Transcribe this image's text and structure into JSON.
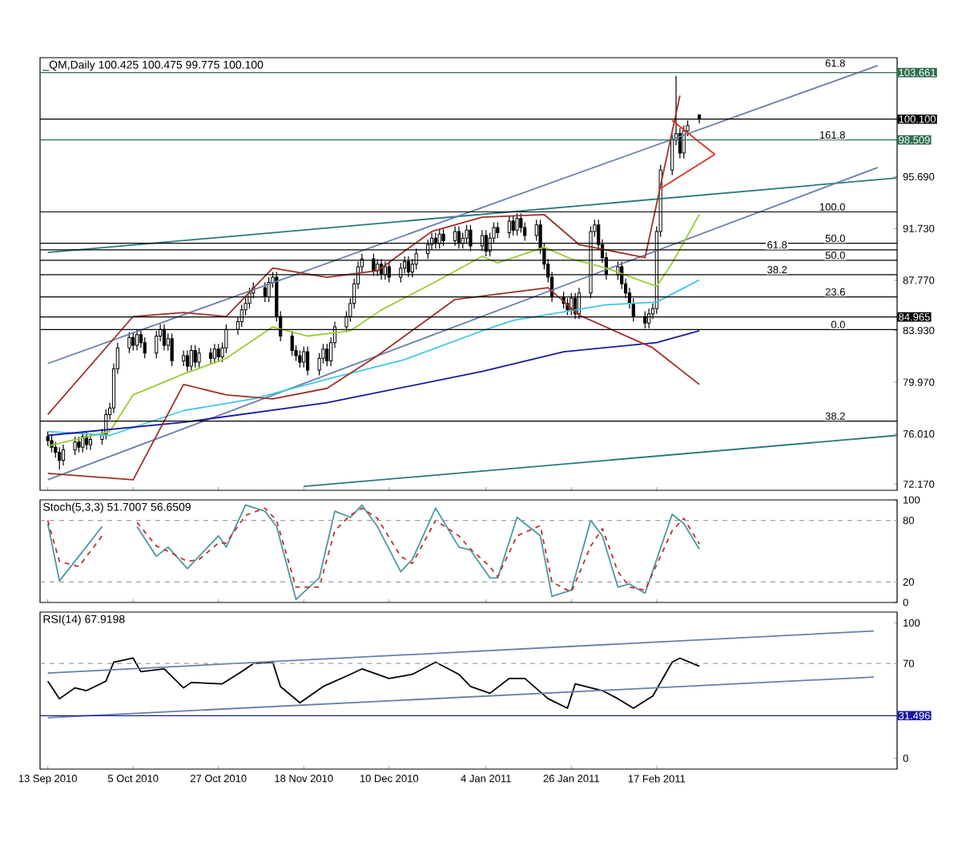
{
  "chart_data": [
    {
      "type": "candlestick",
      "title": "_QM,Daily  100.425 100.475 99.775 100.100",
      "tick_labels": "y",
      "xlim": [
        "2010-09-11",
        "2011-04-20"
      ],
      "ylim": [
        71.7,
        104.8
      ],
      "xticks": [
        {
          "value": "2010-09-13",
          "label": null
        },
        {
          "value": "2010-10-05",
          "label": null
        },
        {
          "value": "2010-10-27",
          "label": null
        },
        {
          "value": "2010-11-18",
          "label": null
        },
        {
          "value": "2010-12-10",
          "label": null
        },
        {
          "value": "2011-01-04",
          "label": null
        },
        {
          "value": "2011-01-26",
          "label": null
        },
        {
          "value": "2011-02-17",
          "label": null
        }
      ],
      "yticks": [
        {
          "value": 95.69,
          "label": "95.690"
        },
        {
          "value": 91.73,
          "label": "91.730"
        },
        {
          "value": 87.77,
          "label": "87.770"
        },
        {
          "value": 83.93,
          "label": "83.930"
        },
        {
          "value": 79.97,
          "label": "79.970"
        },
        {
          "value": 76.01,
          "label": "76.010"
        },
        {
          "value": 72.17,
          "label": "72.170"
        }
      ],
      "x": [
        "2010-09-13",
        "2010-09-14",
        "2010-09-15",
        "2010-09-16",
        "2010-09-17",
        "2010-09-20",
        "2010-09-21",
        "2010-09-22",
        "2010-09-23",
        "2010-09-24",
        "2010-09-27",
        "2010-09-28",
        "2010-09-29",
        "2010-09-30",
        "2010-10-01",
        "2010-10-04",
        "2010-10-05",
        "2010-10-06",
        "2010-10-07",
        "2010-10-08",
        "2010-10-11",
        "2010-10-12",
        "2010-10-13",
        "2010-10-14",
        "2010-10-15",
        "2010-10-18",
        "2010-10-19",
        "2010-10-20",
        "2010-10-21",
        "2010-10-22",
        "2010-10-25",
        "2010-10-26",
        "2010-10-27",
        "2010-10-28",
        "2010-10-29",
        "2010-11-01",
        "2010-11-02",
        "2010-11-03",
        "2010-11-04",
        "2010-11-05",
        "2010-11-08",
        "2010-11-09",
        "2010-11-10",
        "2010-11-11",
        "2010-11-12",
        "2010-11-15",
        "2010-11-16",
        "2010-11-17",
        "2010-11-18",
        "2010-11-19",
        "2010-11-22",
        "2010-11-23",
        "2010-11-24",
        "2010-11-25",
        "2010-11-26",
        "2010-11-29",
        "2010-11-30",
        "2010-12-01",
        "2010-12-02",
        "2010-12-03",
        "2010-12-06",
        "2010-12-07",
        "2010-12-08",
        "2010-12-09",
        "2010-12-10",
        "2010-12-13",
        "2010-12-14",
        "2010-12-15",
        "2010-12-16",
        "2010-12-17",
        "2010-12-20",
        "2010-12-21",
        "2010-12-22",
        "2010-12-23",
        "2010-12-24",
        "2010-12-27",
        "2010-12-28",
        "2010-12-29",
        "2010-12-30",
        "2010-12-31",
        "2011-01-03",
        "2011-01-04",
        "2011-01-05",
        "2011-01-06",
        "2011-01-07",
        "2011-01-10",
        "2011-01-11",
        "2011-01-12",
        "2011-01-13",
        "2011-01-14",
        "2011-01-17",
        "2011-01-18",
        "2011-01-19",
        "2011-01-20",
        "2011-01-21",
        "2011-01-24",
        "2011-01-25",
        "2011-01-26",
        "2011-01-27",
        "2011-01-28",
        "2011-01-31",
        "2011-02-01",
        "2011-02-02",
        "2011-02-03",
        "2011-02-04",
        "2011-02-07",
        "2011-02-08",
        "2011-02-09",
        "2011-02-10",
        "2011-02-11",
        "2011-02-14",
        "2011-02-15",
        "2011-02-16",
        "2011-02-17",
        "2011-02-18",
        "2011-02-21",
        "2011-02-22",
        "2011-02-23",
        "2011-02-24",
        "2011-02-25",
        "2011-02-28"
      ],
      "ohlc": [
        [
          75.8,
          76.2,
          75.1,
          75.5
        ],
        [
          75.5,
          75.9,
          74.6,
          75.0
        ],
        [
          75.0,
          75.4,
          74.2,
          74.6
        ],
        [
          74.6,
          75.0,
          73.3,
          74.0
        ],
        [
          74.0,
          75.2,
          73.6,
          74.8
        ],
        [
          74.8,
          75.8,
          74.4,
          75.4
        ],
        [
          75.4,
          75.8,
          74.6,
          75.0
        ],
        [
          75.0,
          76.2,
          74.6,
          75.8
        ],
        [
          75.8,
          76.2,
          74.8,
          75.2
        ],
        [
          75.2,
          76.0,
          74.8,
          75.6
        ],
        [
          75.6,
          76.4,
          75.2,
          76.0
        ],
        [
          76.0,
          77.9,
          75.6,
          77.5
        ],
        [
          77.5,
          78.4,
          77.1,
          78.0
        ],
        [
          78.0,
          81.4,
          77.6,
          81.0
        ],
        [
          81.0,
          83.0,
          80.6,
          82.6
        ],
        [
          82.6,
          83.8,
          82.2,
          83.4
        ],
        [
          83.4,
          83.8,
          82.4,
          82.8
        ],
        [
          82.8,
          84.0,
          82.4,
          83.6
        ],
        [
          83.6,
          84.0,
          82.6,
          83.0
        ],
        [
          83.0,
          83.4,
          81.8,
          82.2
        ],
        [
          82.2,
          83.9,
          81.8,
          83.5
        ],
        [
          83.5,
          84.4,
          83.1,
          84.0
        ],
        [
          84.0,
          84.4,
          82.4,
          82.8
        ],
        [
          82.8,
          83.7,
          82.4,
          83.3
        ],
        [
          83.3,
          83.7,
          81.2,
          81.6
        ],
        [
          81.6,
          82.4,
          81.2,
          82.0
        ],
        [
          82.0,
          82.4,
          80.8,
          81.2
        ],
        [
          81.2,
          82.8,
          80.8,
          82.4
        ],
        [
          82.4,
          82.8,
          81.1,
          81.5
        ],
        [
          81.5,
          82.6,
          81.1,
          82.2
        ],
        [
          82.2,
          82.6,
          81.4,
          81.8
        ],
        [
          81.8,
          82.9,
          81.4,
          82.5
        ],
        [
          82.5,
          82.9,
          81.5,
          81.9
        ],
        [
          81.9,
          83.0,
          81.5,
          82.6
        ],
        [
          82.6,
          84.4,
          82.2,
          84.0
        ],
        [
          84.0,
          85.0,
          83.6,
          84.6
        ],
        [
          84.6,
          85.9,
          84.2,
          85.5
        ],
        [
          85.5,
          86.4,
          85.1,
          86.0
        ],
        [
          86.0,
          87.2,
          85.6,
          86.8
        ],
        [
          86.8,
          87.6,
          86.4,
          87.2
        ],
        [
          87.2,
          87.6,
          86.1,
          86.5
        ],
        [
          86.5,
          88.0,
          86.1,
          87.6
        ],
        [
          87.6,
          88.4,
          87.2,
          88.0
        ],
        [
          88.0,
          88.4,
          84.6,
          85.0
        ],
        [
          85.0,
          85.4,
          83.1,
          83.5
        ],
        [
          83.5,
          83.9,
          82.0,
          82.4
        ],
        [
          82.4,
          82.8,
          81.6,
          82.0
        ],
        [
          82.0,
          82.4,
          81.1,
          81.5
        ],
        [
          81.5,
          82.7,
          81.1,
          82.3
        ],
        [
          82.3,
          82.7,
          80.5,
          80.9
        ],
        [
          80.9,
          82.2,
          80.5,
          81.8
        ],
        [
          81.8,
          82.9,
          81.4,
          82.5
        ],
        [
          82.5,
          82.9,
          81.2,
          81.6
        ],
        [
          81.6,
          83.4,
          81.2,
          83.0
        ],
        [
          83.0,
          84.6,
          82.6,
          84.2
        ],
        [
          84.2,
          85.4,
          83.8,
          85.0
        ],
        [
          85.0,
          86.4,
          84.6,
          86.0
        ],
        [
          86.0,
          87.9,
          85.6,
          87.5
        ],
        [
          87.5,
          89.2,
          87.1,
          88.8
        ],
        [
          88.8,
          89.8,
          88.4,
          89.4
        ],
        [
          89.4,
          89.8,
          88.1,
          88.5
        ],
        [
          88.5,
          89.4,
          88.1,
          89.0
        ],
        [
          89.0,
          89.4,
          87.8,
          88.2
        ],
        [
          88.2,
          89.2,
          87.8,
          88.8
        ],
        [
          88.8,
          89.2,
          87.6,
          88.0
        ],
        [
          88.0,
          89.1,
          87.6,
          88.7
        ],
        [
          88.7,
          89.6,
          88.3,
          89.2
        ],
        [
          89.2,
          89.6,
          88.0,
          88.4
        ],
        [
          88.4,
          89.4,
          88.0,
          89.0
        ],
        [
          89.0,
          90.2,
          88.6,
          89.8
        ],
        [
          89.8,
          90.9,
          89.4,
          90.5
        ],
        [
          90.5,
          91.4,
          90.1,
          91.0
        ],
        [
          91.0,
          91.4,
          90.2,
          90.6
        ],
        [
          90.6,
          91.7,
          90.2,
          91.3
        ],
        [
          91.3,
          91.7,
          90.4,
          90.8
        ],
        [
          90.8,
          91.9,
          90.4,
          91.5
        ],
        [
          91.5,
          91.9,
          90.2,
          90.6
        ],
        [
          90.6,
          91.4,
          90.2,
          91.0
        ],
        [
          91.0,
          92.0,
          90.6,
          91.6
        ],
        [
          91.6,
          92.0,
          90.0,
          90.4
        ],
        [
          90.4,
          91.6,
          90.0,
          91.2
        ],
        [
          91.2,
          91.6,
          89.6,
          90.0
        ],
        [
          90.0,
          91.4,
          89.6,
          91.0
        ],
        [
          91.0,
          92.2,
          90.6,
          91.8
        ],
        [
          91.8,
          92.2,
          91.0,
          91.4
        ],
        [
          91.4,
          92.7,
          91.0,
          92.3
        ],
        [
          92.3,
          92.7,
          91.2,
          91.6
        ],
        [
          91.6,
          92.9,
          91.2,
          92.5
        ],
        [
          92.5,
          92.9,
          91.4,
          91.8
        ],
        [
          91.8,
          92.2,
          90.8,
          91.2
        ],
        [
          91.2,
          92.4,
          90.8,
          92.0
        ],
        [
          92.0,
          92.4,
          89.8,
          90.2
        ],
        [
          90.2,
          90.6,
          88.6,
          89.0
        ],
        [
          89.0,
          89.4,
          87.6,
          88.0
        ],
        [
          88.0,
          88.4,
          86.1,
          86.5
        ],
        [
          86.5,
          86.9,
          85.6,
          86.0
        ],
        [
          86.0,
          86.4,
          85.1,
          85.5
        ],
        [
          85.5,
          86.8,
          85.1,
          86.4
        ],
        [
          86.4,
          86.8,
          84.8,
          85.2
        ],
        [
          85.2,
          87.2,
          84.8,
          86.8
        ],
        [
          86.8,
          91.9,
          86.4,
          91.5
        ],
        [
          91.5,
          92.4,
          91.1,
          92.0
        ],
        [
          92.0,
          92.4,
          90.1,
          90.5
        ],
        [
          90.5,
          90.9,
          89.1,
          89.5
        ],
        [
          89.5,
          89.9,
          87.8,
          88.2
        ],
        [
          88.2,
          89.2,
          87.8,
          88.8
        ],
        [
          88.8,
          89.2,
          87.1,
          87.5
        ],
        [
          87.5,
          87.9,
          86.4,
          86.8
        ],
        [
          86.8,
          87.2,
          85.6,
          86.0
        ],
        [
          86.0,
          86.4,
          84.6,
          85.0
        ],
        [
          85.0,
          85.4,
          84.1,
          84.5
        ],
        [
          84.5,
          85.6,
          84.1,
          85.2
        ],
        [
          85.2,
          86.0,
          84.8,
          85.6
        ],
        [
          85.6,
          91.9,
          85.2,
          91.5
        ],
        [
          91.5,
          96.6,
          91.1,
          96.2
        ],
        [
          96.2,
          98.9,
          95.8,
          98.5
        ],
        [
          98.5,
          103.4,
          98.1,
          99.0
        ],
        [
          99.0,
          99.4,
          97.1,
          97.5
        ],
        [
          97.5,
          99.6,
          97.1,
          99.2
        ],
        [
          99.2,
          100.0,
          98.8,
          99.6
        ],
        [
          100.425,
          100.475,
          99.775,
          100.1
        ]
      ],
      "series": [
        {
          "type": "line",
          "color": "#2a7a80",
          "x": [
            "2010-09-13",
            "2011-04-20"
          ],
          "values": [
            89.9,
            95.6
          ]
        },
        {
          "type": "line",
          "color": "#2a7a80",
          "x": [
            "2010-11-18",
            "2011-04-20"
          ],
          "values": [
            72.0,
            75.9
          ]
        },
        {
          "type": "line",
          "color": "#6a7fa8",
          "x": [
            "2010-09-13",
            "2011-04-15"
          ],
          "values": [
            81.4,
            104.2
          ]
        },
        {
          "type": "line",
          "color": "#6a7fa8",
          "x": [
            "2010-09-13",
            "2011-04-15"
          ],
          "values": [
            72.5,
            96.4
          ]
        },
        {
          "type": "line",
          "color": "#9acd32",
          "x": [
            "2010-09-13",
            "2010-09-29",
            "2010-10-05",
            "2010-10-18",
            "2010-10-29",
            "2010-11-10",
            "2010-11-19",
            "2010-11-30",
            "2010-12-08",
            "2010-12-21",
            "2011-01-03",
            "2011-01-07",
            "2011-01-19",
            "2011-01-26",
            "2011-02-04",
            "2011-02-17",
            "2011-02-21",
            "2011-02-28"
          ],
          "values": [
            75.1,
            76.2,
            79.0,
            80.6,
            81.8,
            84.2,
            83.5,
            83.9,
            85.5,
            87.5,
            89.6,
            89.1,
            90.3,
            89.4,
            88.7,
            87.3,
            89.1,
            92.8
          ]
        },
        {
          "type": "line",
          "color": "#40c8e8",
          "x": [
            "2010-09-13",
            "2010-09-29",
            "2010-10-18",
            "2010-11-05",
            "2010-11-24",
            "2010-12-14",
            "2011-01-03",
            "2011-01-11",
            "2011-02-04",
            "2011-02-17",
            "2011-02-28"
          ],
          "values": [
            76.2,
            75.9,
            77.8,
            78.7,
            80.2,
            81.7,
            83.9,
            84.7,
            85.9,
            86.1,
            87.8
          ]
        },
        {
          "type": "line",
          "color": "#1a1a9a",
          "x": [
            "2010-09-13",
            "2010-10-18",
            "2010-11-24",
            "2011-01-03",
            "2011-01-24",
            "2011-02-17",
            "2011-02-28"
          ],
          "values": [
            75.9,
            76.9,
            78.4,
            80.8,
            82.3,
            83.0,
            83.9
          ]
        },
        {
          "type": "line",
          "color": "#a0302a",
          "x": [
            "2010-09-13",
            "2010-10-05",
            "2010-10-18",
            "2010-10-29",
            "2010-11-10",
            "2010-11-24",
            "2010-12-07",
            "2010-12-21",
            "2011-01-03",
            "2011-01-19",
            "2011-01-28",
            "2011-02-14",
            "2011-02-23"
          ],
          "values": [
            77.5,
            85.0,
            85.3,
            85.0,
            88.7,
            88.0,
            88.5,
            91.5,
            92.6,
            92.8,
            90.5,
            89.5,
            101.9
          ]
        },
        {
          "type": "line",
          "color": "#a0302a",
          "x": [
            "2010-09-13",
            "2010-10-05",
            "2010-10-18",
            "2010-10-29",
            "2010-11-10",
            "2010-11-24",
            "2010-12-07",
            "2010-12-27",
            "2011-01-20",
            "2011-01-28",
            "2011-02-16",
            "2011-02-28"
          ],
          "values": [
            73.0,
            72.5,
            79.8,
            79.0,
            78.7,
            79.5,
            82.0,
            86.3,
            87.2,
            85.1,
            82.6,
            79.8
          ]
        },
        {
          "type": "line",
          "color": "#e03020",
          "x": [
            "2011-02-21",
            "2011-03-04"
          ],
          "values": [
            100.0,
            97.4
          ]
        },
        {
          "type": "line",
          "color": "#e03020",
          "x": [
            "2011-02-18",
            "2011-03-04"
          ],
          "values": [
            94.8,
            97.4
          ]
        }
      ],
      "ref_lines": [
        {
          "axis": "y",
          "value": 103.661,
          "label": "103.661",
          "color": "#2f6f4f"
        },
        {
          "axis": "y",
          "value": 100.1,
          "label": "100.100",
          "color": "#000000"
        },
        {
          "axis": "y",
          "value": 98.509,
          "label": "98.509",
          "color": "#2f6f4f"
        },
        {
          "axis": "y",
          "value": 84.965,
          "label": "84.965",
          "color": "#000000"
        },
        {
          "axis": "y",
          "value": 93.0,
          "color": "#000000"
        },
        {
          "axis": "y",
          "value": 90.6,
          "color": "#000000"
        },
        {
          "axis": "y",
          "value": 90.1,
          "color": "#000000"
        },
        {
          "axis": "y",
          "value": 89.3,
          "color": "#000000"
        },
        {
          "axis": "y",
          "value": 88.2,
          "color": "#000000"
        },
        {
          "axis": "y",
          "value": 86.5,
          "color": "#000000"
        },
        {
          "axis": "y",
          "value": 84.0,
          "color": "#000000"
        },
        {
          "axis": "y",
          "value": 77.0,
          "color": "#000000"
        }
      ],
      "annotations": [
        {
          "text": "61.8",
          "x": "2011-04-07",
          "y": 104.0
        },
        {
          "text": "161.8",
          "x": "2011-04-07",
          "y": 98.509
        },
        {
          "text": "100.0",
          "x": "2011-04-07",
          "y": 93.0
        },
        {
          "text": "50.0",
          "x": "2011-04-07",
          "y": 90.6
        },
        {
          "text": "61.8",
          "x": "2011-03-23",
          "y": 90.1
        },
        {
          "text": "50.0",
          "x": "2011-04-07",
          "y": 89.3
        },
        {
          "text": "38.2",
          "x": "2011-03-23",
          "y": 88.2
        },
        {
          "text": "23.6",
          "x": "2011-04-07",
          "y": 86.5
        },
        {
          "text": "0.0",
          "x": "2011-04-07",
          "y": 84.0
        },
        {
          "text": "38.2",
          "x": "2011-04-07",
          "y": 77.0
        }
      ]
    },
    {
      "type": "line",
      "title": "Stoch(5,3,3) 51.7007 56.6509",
      "tick_labels": "y",
      "xlim": [
        "2010-09-11",
        "2011-04-20"
      ],
      "ylim": [
        0,
        100
      ],
      "xticks": [
        {
          "value": "2010-09-13",
          "label": null
        },
        {
          "value": "2010-10-05",
          "label": null
        },
        {
          "value": "2010-10-27",
          "label": null
        },
        {
          "value": "2010-11-18",
          "label": null
        },
        {
          "value": "2010-12-10",
          "label": null
        },
        {
          "value": "2011-01-04",
          "label": null
        },
        {
          "value": "2011-01-26",
          "label": null
        },
        {
          "value": "2011-02-17",
          "label": null
        }
      ],
      "yticks": [
        0,
        20,
        80,
        100
      ],
      "series": [
        {
          "color": "#4a9aa0",
          "line_style": "solid",
          "x": [
            "2010-09-13",
            "2010-09-16",
            "2010-09-21",
            "2010-09-27",
            "2010-09-30",
            "2010-10-06",
            "2010-10-11",
            "2010-10-14",
            "2010-10-19",
            "2010-10-22",
            "2010-10-27",
            "2010-10-29",
            "2010-11-03",
            "2010-11-08",
            "2010-11-11",
            "2010-11-16",
            "2010-11-22",
            "2010-11-26",
            "2010-11-30",
            "2010-12-03",
            "2010-12-07",
            "2010-12-13",
            "2010-12-16",
            "2010-12-22",
            "2010-12-28",
            "2010-12-31",
            "2011-01-05",
            "2011-01-07",
            "2011-01-12",
            "2011-01-18",
            "2011-01-21",
            "2011-01-26",
            "2011-01-31",
            "2011-02-03",
            "2011-02-07",
            "2011-02-10",
            "2011-02-14",
            "2011-02-21",
            "2011-02-24",
            "2011-02-28"
          ],
          "values": [
            77,
            21,
            45,
            74,
            null,
            74,
            45,
            54,
            33,
            45,
            65,
            54,
            95,
            89,
            74,
            3,
            24,
            89,
            83,
            95,
            74,
            30,
            42,
            92,
            54,
            51,
            24,
            24,
            83,
            65,
            6,
            12,
            80,
            65,
            15,
            18,
            9,
            86,
            77,
            52
          ]
        },
        {
          "color": "#c03030",
          "line_style": "dashed",
          "x": [
            "2010-09-13",
            "2010-09-16",
            "2010-09-21",
            "2010-09-27",
            "2010-09-30",
            "2010-10-06",
            "2010-10-11",
            "2010-10-14",
            "2010-10-19",
            "2010-10-22",
            "2010-10-27",
            "2010-10-29",
            "2010-11-03",
            "2010-11-08",
            "2010-11-11",
            "2010-11-16",
            "2010-11-22",
            "2010-11-26",
            "2010-11-30",
            "2010-12-03",
            "2010-12-07",
            "2010-12-13",
            "2010-12-16",
            "2010-12-22",
            "2010-12-28",
            "2010-12-31",
            "2011-01-05",
            "2011-01-07",
            "2011-01-12",
            "2011-01-18",
            "2011-01-21",
            "2011-01-26",
            "2011-01-31",
            "2011-02-03",
            "2011-02-07",
            "2011-02-10",
            "2011-02-14",
            "2011-02-21",
            "2011-02-24",
            "2011-02-28"
          ],
          "values": [
            80,
            40,
            35,
            65,
            null,
            78,
            55,
            50,
            40,
            42,
            58,
            58,
            85,
            92,
            80,
            15,
            15,
            70,
            85,
            92,
            82,
            45,
            38,
            80,
            65,
            52,
            35,
            25,
            65,
            75,
            20,
            10,
            55,
            72,
            30,
            15,
            12,
            70,
            82,
            57
          ]
        }
      ],
      "ref_lines": [
        {
          "axis": "y",
          "value": 80,
          "color": "#a0a0a0",
          "line_style": "dashed"
        },
        {
          "axis": "y",
          "value": 20,
          "color": "#a0a0a0",
          "line_style": "dashed"
        }
      ]
    },
    {
      "type": "line",
      "title": "RSI(14) 67.9198",
      "xlim": [
        "2010-09-11",
        "2011-04-20"
      ],
      "ylim": [
        -8,
        108
      ],
      "xticks": [
        {
          "value": "2010-09-13",
          "label": "13 Sep 2010"
        },
        {
          "value": "2010-10-05",
          "label": "5 Oct 2010"
        },
        {
          "value": "2010-10-27",
          "label": "27 Oct 2010"
        },
        {
          "value": "2010-11-18",
          "label": "18 Nov 2010"
        },
        {
          "value": "2010-12-10",
          "label": "10 Dec 2010"
        },
        {
          "value": "2011-01-04",
          "label": "4 Jan 2011"
        },
        {
          "value": "2011-01-26",
          "label": "26 Jan 2011"
        },
        {
          "value": "2011-02-17",
          "label": "17 Feb 2011"
        }
      ],
      "yticks": [
        0,
        70,
        100
      ],
      "series": [
        {
          "color": "#000000",
          "x": [
            "2010-09-13",
            "2010-09-16",
            "2010-09-20",
            "2010-09-23",
            "2010-09-28",
            "2010-09-30",
            "2010-10-05",
            "2010-10-07",
            "2010-10-13",
            "2010-10-18",
            "2010-10-20",
            "2010-10-28",
            "2010-11-02",
            "2010-11-05",
            "2010-11-10",
            "2010-11-12",
            "2010-11-17",
            "2010-11-23",
            "2010-11-30",
            "2010-12-03",
            "2010-12-10",
            "2010-12-16",
            "2010-12-22",
            "2010-12-28",
            "2010-12-31",
            "2011-01-05",
            "2011-01-10",
            "2011-01-14",
            "2011-01-20",
            "2011-01-25",
            "2011-01-27",
            "2011-02-03",
            "2011-02-07",
            "2011-02-11",
            "2011-02-16",
            "2011-02-21",
            "2011-02-23",
            "2011-02-28"
          ],
          "values": [
            57,
            44,
            52,
            50,
            57,
            71,
            74,
            64,
            66,
            52,
            56,
            55,
            64,
            70,
            71,
            53,
            41,
            53,
            62,
            66,
            59,
            62,
            71,
            62,
            53,
            48,
            59,
            59,
            44,
            37,
            55,
            50,
            44,
            37,
            46,
            71,
            74,
            68
          ]
        },
        {
          "color": "#6a7fa8",
          "x": [
            "2010-09-13",
            "2011-04-14"
          ],
          "values": [
            63,
            94
          ]
        },
        {
          "color": "#6a7fa8",
          "x": [
            "2010-09-13",
            "2011-04-14"
          ],
          "values": [
            30,
            60
          ]
        }
      ],
      "ref_lines": [
        {
          "axis": "y",
          "value": 70,
          "color": "#a0a0a0",
          "line_style": "dashed"
        },
        {
          "axis": "y",
          "value": 31.496,
          "label": "31.496",
          "color": "#1a1aa0"
        }
      ]
    }
  ]
}
